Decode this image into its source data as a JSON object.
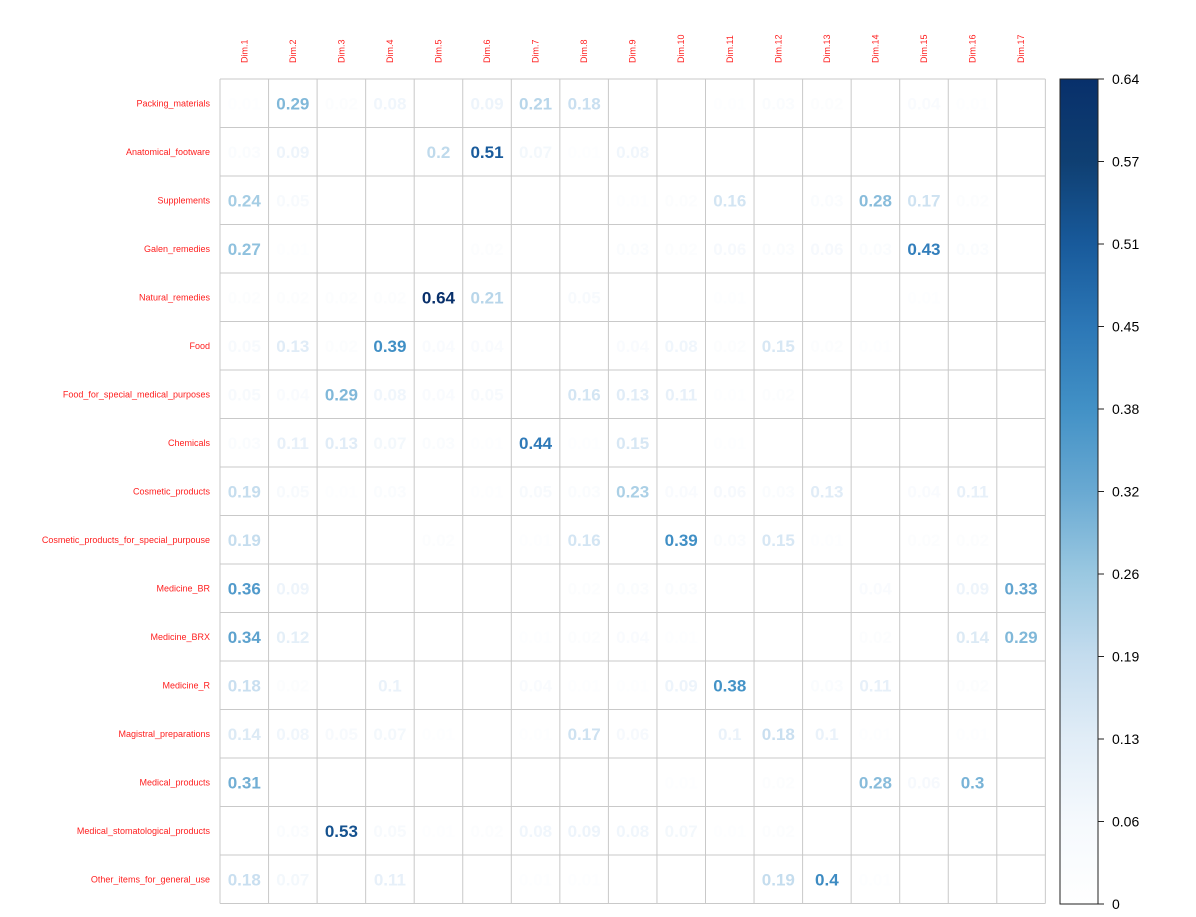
{
  "chart_data": {
    "type": "heatmap",
    "rows": [
      "Packing_materials",
      "Anatomical_footware",
      "Supplements",
      "Galen_remedies",
      "Natural_remedies",
      "Food",
      "Food_for_special_medical_purposes",
      "Chemicals",
      "Cosmetic_products",
      "Cosmetic_products_for_special_purpouse",
      "Medicine_BR",
      "Medicine_BRX",
      "Medicine_R",
      "Magistral_preparations",
      "Medical_products",
      "Medical_stomatological_products",
      "Other_items_for_general_use"
    ],
    "columns": [
      "Dim.1",
      "Dim.2",
      "Dim.3",
      "Dim.4",
      "Dim.5",
      "Dim.6",
      "Dim.7",
      "Dim.8",
      "Dim.9",
      "Dim.10",
      "Dim.11",
      "Dim.12",
      "Dim.13",
      "Dim.14",
      "Dim.15",
      "Dim.16",
      "Dim.17"
    ],
    "values": [
      [
        0.01,
        0.29,
        0.02,
        0.08,
        0,
        0.09,
        0.21,
        0.18,
        0,
        0,
        0.01,
        0.03,
        0.02,
        0,
        0.04,
        0.01,
        0
      ],
      [
        0.03,
        0.09,
        0,
        0,
        0.2,
        0.51,
        0.07,
        0.01,
        0.08,
        0,
        0,
        0,
        0,
        0,
        0,
        0,
        0
      ],
      [
        0.24,
        0.05,
        0,
        0,
        0,
        0,
        0,
        0,
        0.01,
        0.02,
        0.16,
        0,
        0.03,
        0.28,
        0.17,
        0.02,
        0
      ],
      [
        0.27,
        0.01,
        0,
        0,
        0,
        0.02,
        0,
        0,
        0.03,
        0.02,
        0.06,
        0.03,
        0.06,
        0.03,
        0.43,
        0.03,
        0
      ],
      [
        0.02,
        0.02,
        0.02,
        0.02,
        0.64,
        0.21,
        0,
        0.05,
        0,
        0,
        0.01,
        0,
        0,
        0,
        0.01,
        0,
        0
      ],
      [
        0.05,
        0.13,
        0.02,
        0.39,
        0.04,
        0.04,
        0,
        0,
        0.04,
        0.08,
        0.02,
        0.15,
        0.02,
        0.01,
        0,
        0,
        0
      ],
      [
        0.05,
        0.04,
        0.29,
        0.08,
        0.04,
        0.05,
        0,
        0.16,
        0.13,
        0.11,
        0.01,
        0.02,
        0,
        0,
        0,
        0,
        0
      ],
      [
        0.03,
        0.11,
        0.13,
        0.07,
        0.03,
        0.01,
        0.44,
        0.01,
        0.15,
        0,
        0.01,
        0,
        0,
        0,
        0,
        0,
        0
      ],
      [
        0.19,
        0.05,
        0.01,
        0.03,
        0,
        0.01,
        0.05,
        0.03,
        0.23,
        0.04,
        0.06,
        0.03,
        0.13,
        0,
        0.04,
        0.11,
        0
      ],
      [
        0.19,
        0,
        0,
        0,
        0.02,
        0,
        0.01,
        0.16,
        0,
        0.39,
        0.03,
        0.15,
        0.01,
        0,
        0.02,
        0.02,
        0
      ],
      [
        0.36,
        0.09,
        0,
        0,
        0,
        0,
        0,
        0.02,
        0.03,
        0.03,
        0,
        0,
        0,
        0.04,
        0,
        0.09,
        0.33
      ],
      [
        0.34,
        0.12,
        0,
        0,
        0,
        0,
        0.01,
        0.02,
        0.04,
        0.01,
        0,
        0,
        0,
        0.02,
        0,
        0.14,
        0.29
      ],
      [
        0.18,
        0.02,
        0,
        0.1,
        0,
        0,
        0.04,
        0.01,
        0.01,
        0.09,
        0.38,
        0,
        0.03,
        0.11,
        0,
        0.02,
        0
      ],
      [
        0.14,
        0.08,
        0.05,
        0.07,
        0.01,
        0,
        0.01,
        0.17,
        0.06,
        0,
        0.1,
        0.18,
        0.1,
        0.01,
        0,
        0.01,
        0
      ],
      [
        0.31,
        0,
        0,
        0,
        0,
        0,
        0,
        0,
        0,
        0.01,
        0,
        0.02,
        0,
        0.28,
        0.06,
        0.3,
        0
      ],
      [
        0,
        0.03,
        0.53,
        0.05,
        0.01,
        0.02,
        0.08,
        0.09,
        0.08,
        0.07,
        0.01,
        0.02,
        0,
        0,
        0,
        0,
        0
      ],
      [
        0.18,
        0.07,
        0,
        0.11,
        0,
        0,
        0.01,
        0.01,
        0,
        0,
        0,
        0.19,
        0.4,
        0.01,
        0,
        0,
        0
      ]
    ],
    "colorbar": {
      "range": [
        0,
        0.64
      ],
      "ticks": [
        "0",
        "0.06",
        "0.13",
        "0.19",
        "0.26",
        "0.32",
        "0.38",
        "0.45",
        "0.51",
        "0.57",
        "0.64"
      ],
      "colors": [
        "#ffffff",
        "#f5f9fd",
        "#e1edf7",
        "#c4dcee",
        "#9ac8e1",
        "#69a9d2",
        "#4291c6",
        "#2c77b6",
        "#185a9b",
        "#0f3f72",
        "#08306b"
      ]
    },
    "label_color": "#ff2020",
    "grid_color": "#c9c9c9"
  }
}
